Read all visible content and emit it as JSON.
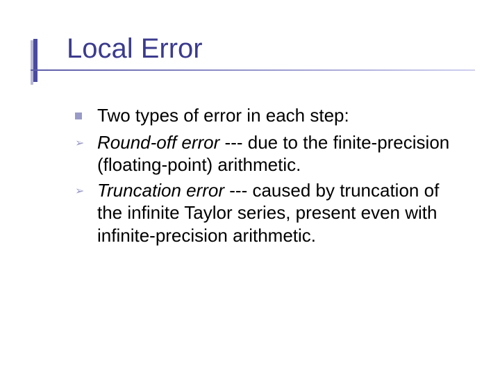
{
  "slide": {
    "title": "Local Error",
    "body": {
      "main_bullet": "Two types of error in each step:",
      "sub1_ital": "Round-off error",
      "sub1_rest": " --- due to the finite-precision (floating-point) arithmetic.",
      "sub2_ital": "Truncation error",
      "sub2_rest": " --- caused by truncation of the infinite Taylor series, present even with infinite-precision arithmetic."
    }
  },
  "style": {
    "type": "slide",
    "background_color": "#ffffff",
    "title_color": "#3b3b8f",
    "title_fontsize_pt": 30,
    "body_color": "#000000",
    "body_fontsize_pt": 20,
    "accent_bar_color": "#4a4aa0",
    "accent_shadow_color": "#b8b8d8",
    "rule_gradient": [
      "#5b5ba8",
      "#cfcff0"
    ],
    "bullet_square_color": "#9a9ac8",
    "bullet_arrow_color": "#9a9ac8",
    "font_family": "Verdana",
    "aspect": "720x540"
  }
}
